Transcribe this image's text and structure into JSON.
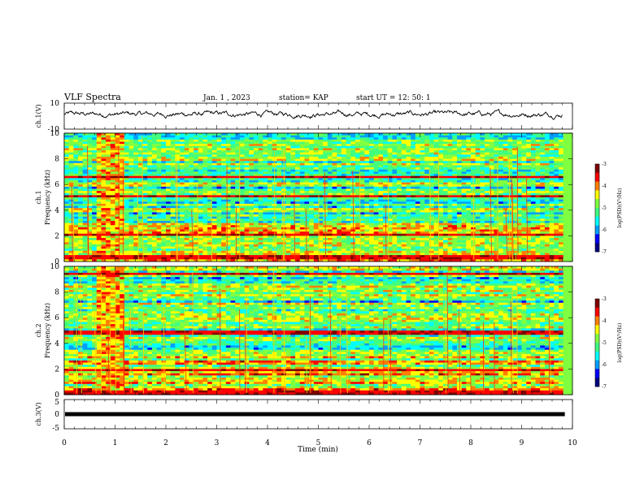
{
  "header": {
    "title": "VLF Spectra",
    "date": "Jan. 1 , 2023",
    "station": "station= KAP",
    "start": "start UT = 12: 50: 1"
  },
  "colors": {
    "colormap": [
      "#000080",
      "#0000ff",
      "#00a0ff",
      "#00ffff",
      "#40ff80",
      "#80ff40",
      "#ffff00",
      "#ff8000",
      "#ff0000",
      "#800000"
    ]
  },
  "chart_data": [
    {
      "type": "line",
      "panel": "ch1-waveform",
      "ylabel": "ch.1(V)",
      "ylim": [
        -10,
        10
      ],
      "yticks": [
        "10",
        "-10"
      ],
      "xlim": [
        0,
        10
      ],
      "x_extent_end": 9.8,
      "description_values": {
        "approx_mean_v": 1.5,
        "approx_amplitude_v": 4
      }
    },
    {
      "type": "heatmap",
      "panel": "ch1-spectrogram",
      "ylabel": "ch.1\nFrequency (kHz)",
      "ylabel_line1": "ch.1",
      "ylabel_line2": "Frequency (kHz)",
      "ylim": [
        0,
        10
      ],
      "yticks": [
        "0",
        "2",
        "4",
        "6",
        "8",
        "10"
      ],
      "xlim": [
        0,
        10
      ],
      "colorbar": {
        "label": "log(PSD)(V²/Hz)",
        "ticks": [
          "-3",
          "-4",
          "-5",
          "-6",
          "-7"
        ],
        "range": [
          -7,
          -3
        ]
      },
      "burst_interval_min": [
        0.6,
        1.2
      ],
      "strong_bands_khz": [
        6.6,
        5.1,
        2.1,
        0.3
      ]
    },
    {
      "type": "heatmap",
      "panel": "ch2-spectrogram",
      "ylabel_line1": "ch.2",
      "ylabel_line2": "Frequency (kHz)",
      "ylim": [
        0,
        10
      ],
      "yticks": [
        "0",
        "2",
        "4",
        "6",
        "8",
        "10"
      ],
      "xlim": [
        0,
        10
      ],
      "colorbar": {
        "label": "log(PSD)(V²/Hz)",
        "ticks": [
          "-3",
          "-4",
          "-5",
          "-6",
          "-7"
        ],
        "range": [
          -7,
          -3
        ]
      },
      "burst_interval_min": [
        0.6,
        1.2
      ],
      "strong_bands_khz": [
        9.4,
        4.8,
        1.9,
        0.2
      ]
    },
    {
      "type": "line",
      "panel": "ch3-waveform",
      "ylabel": "ch.3(V)",
      "ylim": [
        -5,
        5
      ],
      "yticks": [
        "5",
        "0",
        "-5"
      ],
      "xlim": [
        0,
        10
      ],
      "xlabel": "Time (min)",
      "xticks": [
        "0",
        "1",
        "2",
        "3",
        "4",
        "5",
        "6",
        "7",
        "8",
        "9",
        "10"
      ],
      "constant_value_v": 0
    }
  ]
}
